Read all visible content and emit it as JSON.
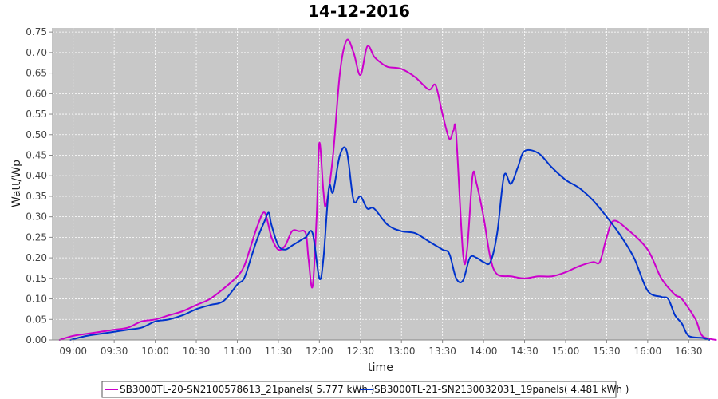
{
  "chart_data": {
    "type": "line",
    "title": "14-12-2016",
    "xlabel": "time",
    "ylabel": "Watt/Wp",
    "ylim": [
      0,
      0.76
    ],
    "xlim": [
      "08:45",
      "16:45"
    ],
    "grid": true,
    "legend_position": "bottom",
    "y_ticks": [
      "0.00",
      "0.05",
      "0.10",
      "0.15",
      "0.20",
      "0.25",
      "0.30",
      "0.35",
      "0.40",
      "0.45",
      "0.50",
      "0.55",
      "0.60",
      "0.65",
      "0.70",
      "0.75"
    ],
    "x_ticks": [
      "09:00",
      "09:30",
      "10:00",
      "10:30",
      "11:00",
      "11:30",
      "12:00",
      "12:30",
      "13:00",
      "13:30",
      "14:00",
      "14:30",
      "15:00",
      "15:30",
      "16:00",
      "16:30"
    ],
    "colors": {
      "plot_bg": "#c8c8c8"
    },
    "series": [
      {
        "name": "SB3000TL-20-SN2100578613_21panels( 5.777 kWh )",
        "color": "#cc00cc",
        "points": [
          [
            "08:50",
            0.0
          ],
          [
            "09:00",
            0.01
          ],
          [
            "09:10",
            0.015
          ],
          [
            "09:20",
            0.02
          ],
          [
            "09:30",
            0.025
          ],
          [
            "09:40",
            0.03
          ],
          [
            "09:50",
            0.045
          ],
          [
            "10:00",
            0.05
          ],
          [
            "10:10",
            0.06
          ],
          [
            "10:20",
            0.07
          ],
          [
            "10:30",
            0.085
          ],
          [
            "10:40",
            0.1
          ],
          [
            "10:50",
            0.125
          ],
          [
            "11:00",
            0.155
          ],
          [
            "11:05",
            0.18
          ],
          [
            "11:10",
            0.23
          ],
          [
            "11:15",
            0.28
          ],
          [
            "11:20",
            0.31
          ],
          [
            "11:25",
            0.25
          ],
          [
            "11:30",
            0.22
          ],
          [
            "11:35",
            0.23
          ],
          [
            "11:40",
            0.265
          ],
          [
            "11:45",
            0.265
          ],
          [
            "11:50",
            0.26
          ],
          [
            "11:52",
            0.2
          ],
          [
            "11:55",
            0.13
          ],
          [
            "11:58",
            0.3
          ],
          [
            "12:00",
            0.48
          ],
          [
            "12:03",
            0.36
          ],
          [
            "12:05",
            0.33
          ],
          [
            "12:10",
            0.45
          ],
          [
            "12:15",
            0.65
          ],
          [
            "12:20",
            0.73
          ],
          [
            "12:25",
            0.7
          ],
          [
            "12:30",
            0.645
          ],
          [
            "12:35",
            0.715
          ],
          [
            "12:40",
            0.69
          ],
          [
            "12:45",
            0.675
          ],
          [
            "12:50",
            0.665
          ],
          [
            "13:00",
            0.66
          ],
          [
            "13:10",
            0.64
          ],
          [
            "13:20",
            0.61
          ],
          [
            "13:25",
            0.62
          ],
          [
            "13:30",
            0.55
          ],
          [
            "13:35",
            0.49
          ],
          [
            "13:38",
            0.51
          ],
          [
            "13:40",
            0.5
          ],
          [
            "13:45",
            0.21
          ],
          [
            "13:48",
            0.22
          ],
          [
            "13:52",
            0.4
          ],
          [
            "13:55",
            0.38
          ],
          [
            "14:00",
            0.3
          ],
          [
            "14:05",
            0.2
          ],
          [
            "14:10",
            0.16
          ],
          [
            "14:20",
            0.155
          ],
          [
            "14:30",
            0.15
          ],
          [
            "14:40",
            0.155
          ],
          [
            "14:50",
            0.155
          ],
          [
            "15:00",
            0.165
          ],
          [
            "15:10",
            0.18
          ],
          [
            "15:20",
            0.19
          ],
          [
            "15:25",
            0.19
          ],
          [
            "15:30",
            0.25
          ],
          [
            "15:35",
            0.29
          ],
          [
            "15:45",
            0.27
          ],
          [
            "16:00",
            0.22
          ],
          [
            "16:10",
            0.15
          ],
          [
            "16:20",
            0.11
          ],
          [
            "16:25",
            0.1
          ],
          [
            "16:35",
            0.05
          ],
          [
            "16:40",
            0.01
          ],
          [
            "16:50",
            0.0
          ]
        ]
      },
      {
        "name": "SB3000TL-21-SN2130032031_19panels( 4.481 kWh )",
        "color": "#0033cc",
        "points": [
          [
            "08:58",
            0.0
          ],
          [
            "09:10",
            0.01
          ],
          [
            "09:20",
            0.015
          ],
          [
            "09:30",
            0.02
          ],
          [
            "09:40",
            0.025
          ],
          [
            "09:50",
            0.03
          ],
          [
            "10:00",
            0.045
          ],
          [
            "10:10",
            0.05
          ],
          [
            "10:20",
            0.06
          ],
          [
            "10:30",
            0.075
          ],
          [
            "10:40",
            0.085
          ],
          [
            "10:50",
            0.095
          ],
          [
            "11:00",
            0.135
          ],
          [
            "11:05",
            0.15
          ],
          [
            "11:10",
            0.2
          ],
          [
            "11:15",
            0.25
          ],
          [
            "11:20",
            0.29
          ],
          [
            "11:23",
            0.31
          ],
          [
            "11:25",
            0.28
          ],
          [
            "11:30",
            0.23
          ],
          [
            "11:35",
            0.22
          ],
          [
            "11:40",
            0.23
          ],
          [
            "11:45",
            0.24
          ],
          [
            "11:50",
            0.25
          ],
          [
            "11:55",
            0.26
          ],
          [
            "12:00",
            0.15
          ],
          [
            "12:03",
            0.2
          ],
          [
            "12:07",
            0.37
          ],
          [
            "12:10",
            0.36
          ],
          [
            "12:15",
            0.45
          ],
          [
            "12:20",
            0.46
          ],
          [
            "12:25",
            0.34
          ],
          [
            "12:30",
            0.35
          ],
          [
            "12:35",
            0.32
          ],
          [
            "12:40",
            0.32
          ],
          [
            "12:50",
            0.28
          ],
          [
            "13:00",
            0.265
          ],
          [
            "13:10",
            0.26
          ],
          [
            "13:20",
            0.24
          ],
          [
            "13:30",
            0.22
          ],
          [
            "13:35",
            0.21
          ],
          [
            "13:40",
            0.15
          ],
          [
            "13:45",
            0.145
          ],
          [
            "13:50",
            0.2
          ],
          [
            "13:55",
            0.2
          ],
          [
            "14:00",
            0.19
          ],
          [
            "14:05",
            0.19
          ],
          [
            "14:10",
            0.26
          ],
          [
            "14:15",
            0.4
          ],
          [
            "14:20",
            0.38
          ],
          [
            "14:25",
            0.42
          ],
          [
            "14:30",
            0.46
          ],
          [
            "14:40",
            0.455
          ],
          [
            "14:50",
            0.42
          ],
          [
            "15:00",
            0.39
          ],
          [
            "15:10",
            0.37
          ],
          [
            "15:20",
            0.34
          ],
          [
            "15:30",
            0.3
          ],
          [
            "15:40",
            0.255
          ],
          [
            "15:50",
            0.2
          ],
          [
            "16:00",
            0.12
          ],
          [
            "16:10",
            0.105
          ],
          [
            "16:15",
            0.1
          ],
          [
            "16:20",
            0.06
          ],
          [
            "16:25",
            0.04
          ],
          [
            "16:30",
            0.01
          ],
          [
            "16:40",
            0.005
          ],
          [
            "16:45",
            0.0
          ]
        ]
      }
    ]
  }
}
